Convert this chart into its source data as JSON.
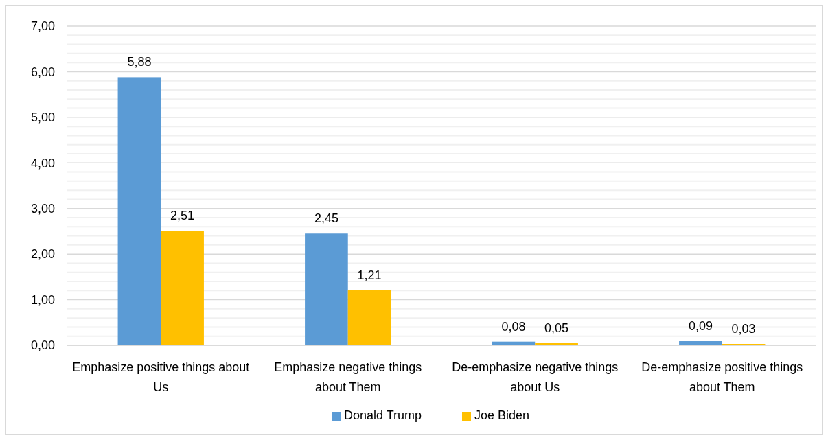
{
  "chart_data": {
    "type": "bar",
    "categories": [
      "Emphasize positive things about Us",
      "Emphasize negative things about Them",
      "De-emphasize negative things about Us",
      "De-emphasize positive things about Them"
    ],
    "series": [
      {
        "name": "Donald Trump",
        "color": "#5b9bd5",
        "values": [
          5.88,
          2.45,
          0.08,
          0.09
        ],
        "value_labels": [
          "5,88",
          "2,45",
          "0,08",
          "0,09"
        ]
      },
      {
        "name": "Joe Biden",
        "color": "#ffc000",
        "values": [
          2.51,
          1.21,
          0.05,
          0.03
        ],
        "value_labels": [
          "2,51",
          "1,21",
          "0,05",
          "0,03"
        ]
      }
    ],
    "ylim": [
      0,
      7
    ],
    "yticks": [
      {
        "value": 0,
        "label": "0,00"
      },
      {
        "value": 0.2,
        "label": null
      },
      {
        "value": 0.4,
        "label": null
      },
      {
        "value": 0.6,
        "label": null
      },
      {
        "value": 0.8,
        "label": null
      },
      {
        "value": 1,
        "label": "1,00"
      },
      {
        "value": 1.2,
        "label": null
      },
      {
        "value": 1.4,
        "label": null
      },
      {
        "value": 1.6,
        "label": null
      },
      {
        "value": 1.8,
        "label": null
      },
      {
        "value": 2,
        "label": "2,00"
      },
      {
        "value": 2.2,
        "label": null
      },
      {
        "value": 2.4,
        "label": null
      },
      {
        "value": 2.6,
        "label": null
      },
      {
        "value": 2.8,
        "label": null
      },
      {
        "value": 3,
        "label": "3,00"
      },
      {
        "value": 3.2,
        "label": null
      },
      {
        "value": 3.4,
        "label": null
      },
      {
        "value": 3.6,
        "label": null
      },
      {
        "value": 3.8,
        "label": null
      },
      {
        "value": 4,
        "label": "4,00"
      },
      {
        "value": 4.2,
        "label": null
      },
      {
        "value": 4.4,
        "label": null
      },
      {
        "value": 4.6,
        "label": null
      },
      {
        "value": 4.8,
        "label": null
      },
      {
        "value": 5,
        "label": "5,00"
      },
      {
        "value": 5.2,
        "label": null
      },
      {
        "value": 5.4,
        "label": null
      },
      {
        "value": 5.6,
        "label": null
      },
      {
        "value": 5.8,
        "label": null
      },
      {
        "value": 6,
        "label": "6,00"
      },
      {
        "value": 6.2,
        "label": null
      },
      {
        "value": 6.4,
        "label": null
      },
      {
        "value": 6.6,
        "label": null
      },
      {
        "value": 6.8,
        "label": null
      },
      {
        "value": 7,
        "label": "7,00"
      }
    ],
    "grid": "y",
    "legend": "bottom"
  }
}
